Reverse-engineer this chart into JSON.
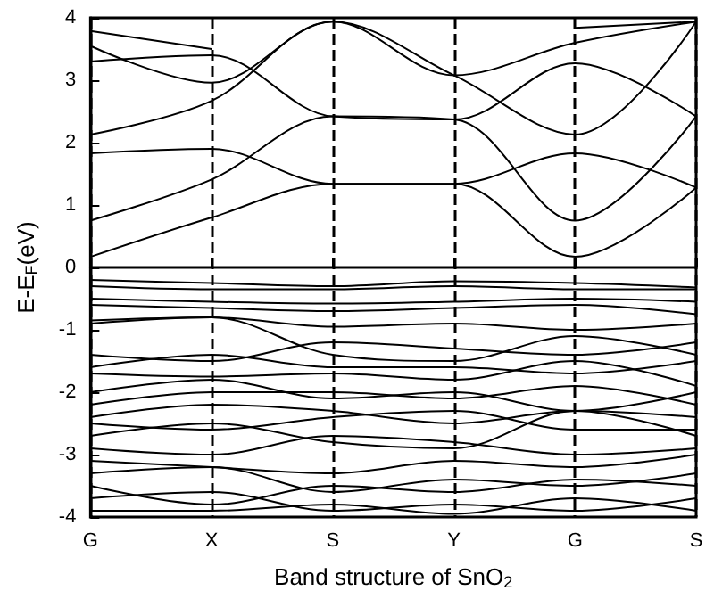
{
  "chart_data": {
    "type": "line",
    "xlabel": "Band structure of SnO$_{2}$",
    "ylabel": "E-E$_{F}$(eV)",
    "color": "#000000",
    "line_style": "solid",
    "marker": "none",
    "grid": "x",
    "categories": [
      "G",
      "X",
      "S",
      "Y",
      "G",
      "S"
    ],
    "ylim": [
      -4,
      4
    ],
    "yticks": [
      -4,
      -3,
      -2,
      -1,
      0,
      1,
      2,
      3,
      4
    ],
    "series": [
      {
        "values": [
          0.17,
          0.8,
          1.34,
          1.34,
          0.17,
          1.28
        ]
      },
      {
        "values": [
          1.83,
          1.9,
          1.34,
          1.34,
          1.83,
          1.28
        ]
      },
      {
        "values": [
          0.75,
          1.41,
          2.42,
          2.37,
          0.75,
          2.42
        ]
      },
      {
        "values": [
          3.3,
          3.4,
          2.42,
          2.37,
          3.27,
          2.42
        ]
      },
      {
        "values": [
          2.13,
          2.67,
          3.94,
          3.08,
          2.13,
          3.94
        ]
      },
      {
        "values": [
          3.55,
          2.96,
          3.94,
          3.08,
          3.6,
          3.94
        ]
      },
      {
        "values": [
          3.79,
          3.5,
          null,
          null,
          3.84,
          3.94
        ]
      },
      {
        "values": [
          -0.2,
          -0.25,
          -0.3,
          -0.22,
          -0.25,
          -0.32
        ]
      },
      {
        "values": [
          -0.3,
          -0.35,
          -0.35,
          -0.3,
          -0.35,
          -0.35
        ]
      },
      {
        "values": [
          -0.5,
          -0.55,
          -0.58,
          -0.55,
          -0.5,
          -0.55
        ]
      },
      {
        "values": [
          -0.6,
          -0.65,
          -0.7,
          -0.65,
          -0.6,
          -0.75
        ]
      },
      {
        "values": [
          -0.85,
          -0.8,
          -0.95,
          -0.9,
          -1.0,
          -0.9
        ]
      },
      {
        "values": [
          -0.9,
          -0.8,
          -1.4,
          -1.5,
          -1.1,
          -1.4
        ]
      },
      {
        "values": [
          -1.4,
          -1.5,
          -1.2,
          -1.3,
          -1.4,
          -1.2
        ]
      },
      {
        "values": [
          -1.6,
          -1.4,
          -1.6,
          -1.6,
          -1.7,
          -1.5
        ]
      },
      {
        "values": [
          -1.7,
          -1.75,
          -1.7,
          -1.8,
          -1.5,
          -1.9
        ]
      },
      {
        "values": [
          -2.0,
          -1.8,
          -2.1,
          -2.0,
          -2.3,
          -2.0
        ]
      },
      {
        "values": [
          -2.2,
          -2.0,
          -2.0,
          -2.1,
          -1.9,
          -2.2
        ]
      },
      {
        "values": [
          -2.4,
          -2.2,
          -2.3,
          -2.5,
          -2.3,
          -2.4
        ]
      },
      {
        "values": [
          -2.5,
          -2.6,
          -2.4,
          -2.3,
          -2.6,
          -2.6
        ]
      },
      {
        "values": [
          -2.7,
          -2.5,
          -2.8,
          -2.9,
          -2.3,
          -2.7
        ]
      },
      {
        "values": [
          -2.9,
          -3.0,
          -2.7,
          -2.8,
          -3.0,
          -2.9
        ]
      },
      {
        "values": [
          -3.1,
          -3.2,
          -3.3,
          -3.1,
          -3.2,
          -3.0
        ]
      },
      {
        "values": [
          -3.3,
          -3.2,
          -3.6,
          -3.4,
          -3.5,
          -3.3
        ]
      },
      {
        "values": [
          -3.5,
          -3.8,
          -3.5,
          -3.6,
          -3.4,
          -3.5
        ]
      },
      {
        "values": [
          -3.7,
          -3.6,
          -3.9,
          -3.8,
          -3.9,
          -3.7
        ]
      },
      {
        "values": [
          -3.9,
          -3.9,
          -3.8,
          -3.95,
          -3.7,
          -3.9
        ]
      }
    ]
  }
}
